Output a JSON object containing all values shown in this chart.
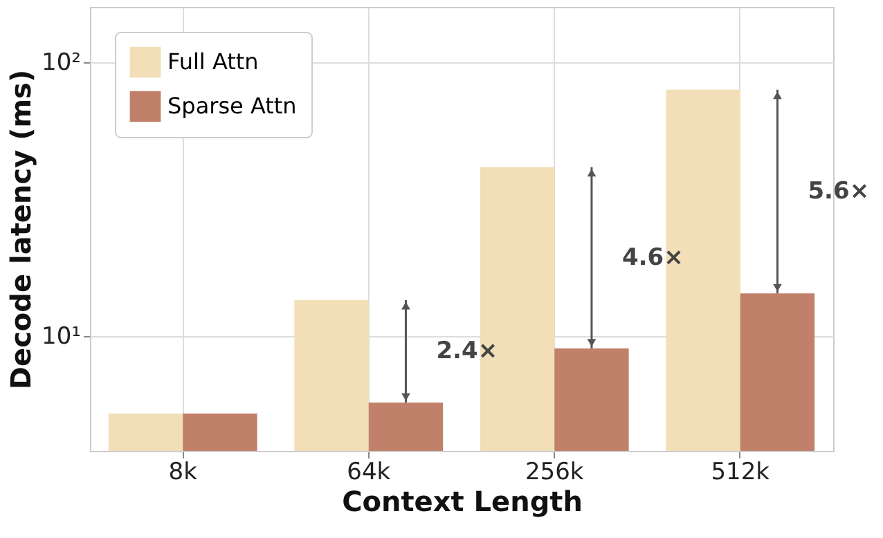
{
  "chart_data": {
    "type": "bar",
    "categories": [
      "8k",
      "64k",
      "256k",
      "512k"
    ],
    "series": [
      {
        "name": "Full Attn",
        "color": "#f2dfb8",
        "values": [
          5.2,
          13.5,
          41.3,
          79.2
        ]
      },
      {
        "name": "Sparse Attn",
        "color": "#c0806a",
        "values": [
          5.2,
          5.7,
          9.0,
          14.3
        ]
      }
    ],
    "xlabel": "Context Length",
    "ylabel": "Decode latency (ms)",
    "log": "y",
    "ylim": [
      3.8,
      159
    ],
    "yticks": [
      {
        "value": 10,
        "label": "10¹"
      },
      {
        "value": 100,
        "label": "10²"
      }
    ],
    "annotations": [
      {
        "text": "2.4×",
        "x": "64k"
      },
      {
        "text": "4.6×",
        "x": "256k"
      },
      {
        "text": "5.6×",
        "x": "512k"
      }
    ],
    "grid": true,
    "legend": "top left"
  }
}
